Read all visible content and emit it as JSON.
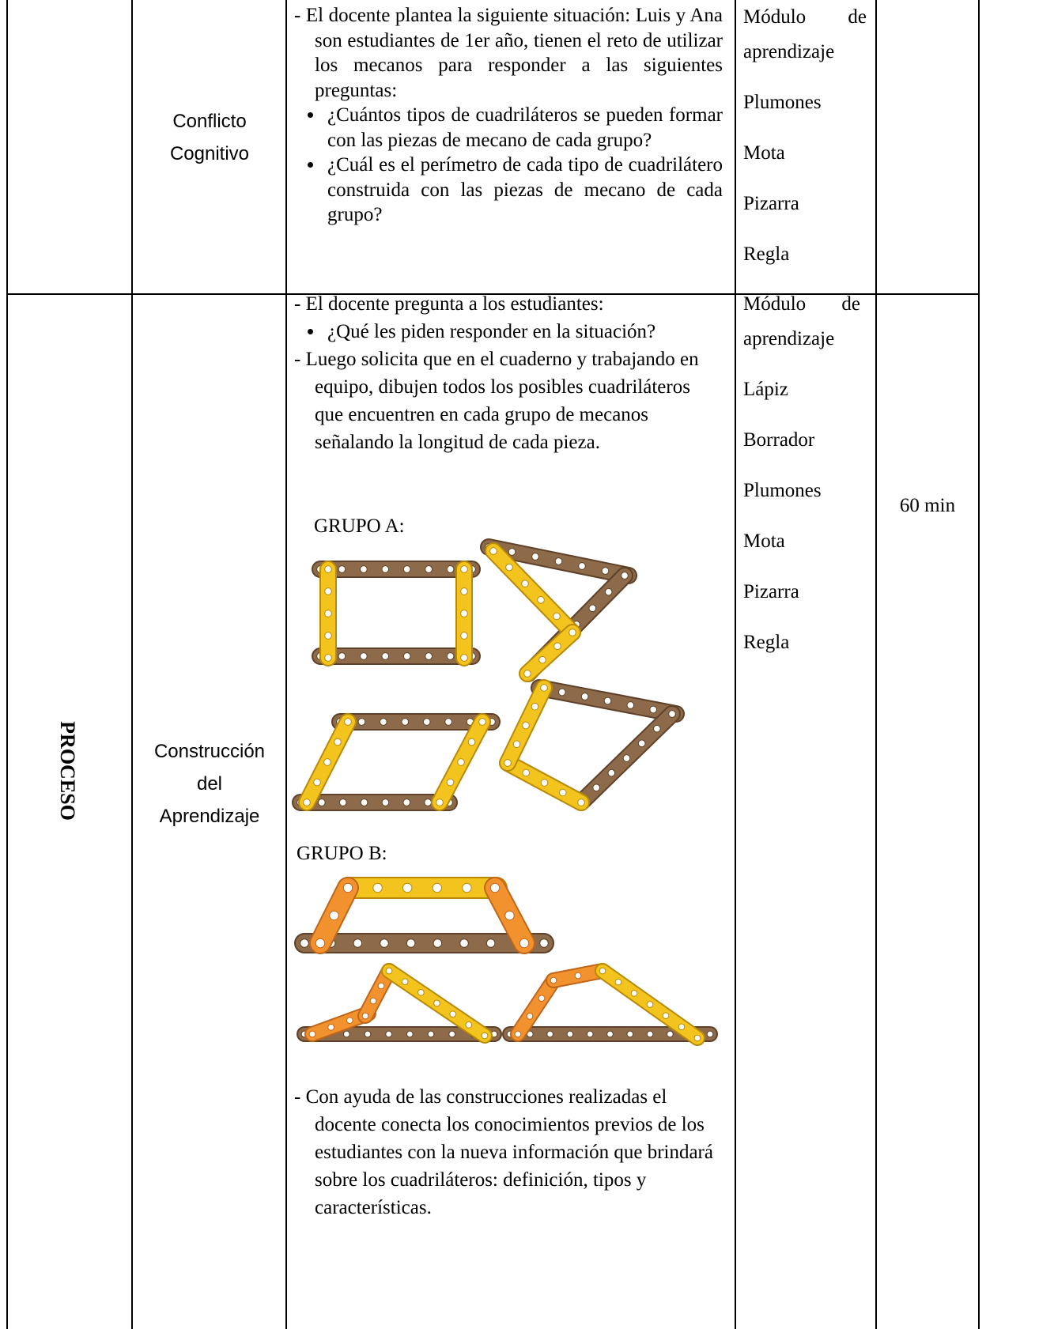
{
  "table": {
    "rows": [
      {
        "moment": "Conflicto Cognitivo",
        "strategy": [
          {
            "text": "- El docente plantea la siguiente situación: Luis y Ana son estudiantes de 1er año, tienen el reto de utilizar los mecanos para responder a las siguientes preguntas:",
            "bullets": [
              "¿Cuántos tipos de cuadriláteros se pueden formar con las piezas de mecano de cada grupo?",
              "¿Cuál es el perímetro de cada tipo de cuadrilátero construida con las piezas de mecano de cada grupo?"
            ]
          }
        ],
        "resources": [
          "Módulo de aprendizaje",
          "Plumones",
          "Mota",
          "Pizarra",
          "Regla"
        ]
      },
      {
        "stage": "PROCESO",
        "moment": "Construcción del Aprendizaje",
        "strategy": [
          {
            "text": "- El docente pregunta a los estudiantes:",
            "bullets": [
              "¿Qué les piden responder en la situación?"
            ]
          },
          {
            "text": "- Luego solicita que en el cuaderno y trabajando en equipo, dibujen todos los posibles cuadriláteros que encuentren en cada grupo de mecanos señalando la longitud de cada pieza."
          }
        ],
        "figures": [
          "GRUPO A:",
          "GRUPO B:"
        ],
        "closing": "- Con ayuda de las construcciones realizadas el docente conecta los conocimientos previos de los estudiantes con la nueva información que brindará sobre los cuadriláteros: definición, tipos y características.",
        "resources": [
          "Módulo de aprendizaje",
          "Lápiz",
          "Borrador",
          "Plumones",
          "Mota",
          "Pizarra",
          "Regla"
        ],
        "time": "60 min"
      }
    ]
  }
}
